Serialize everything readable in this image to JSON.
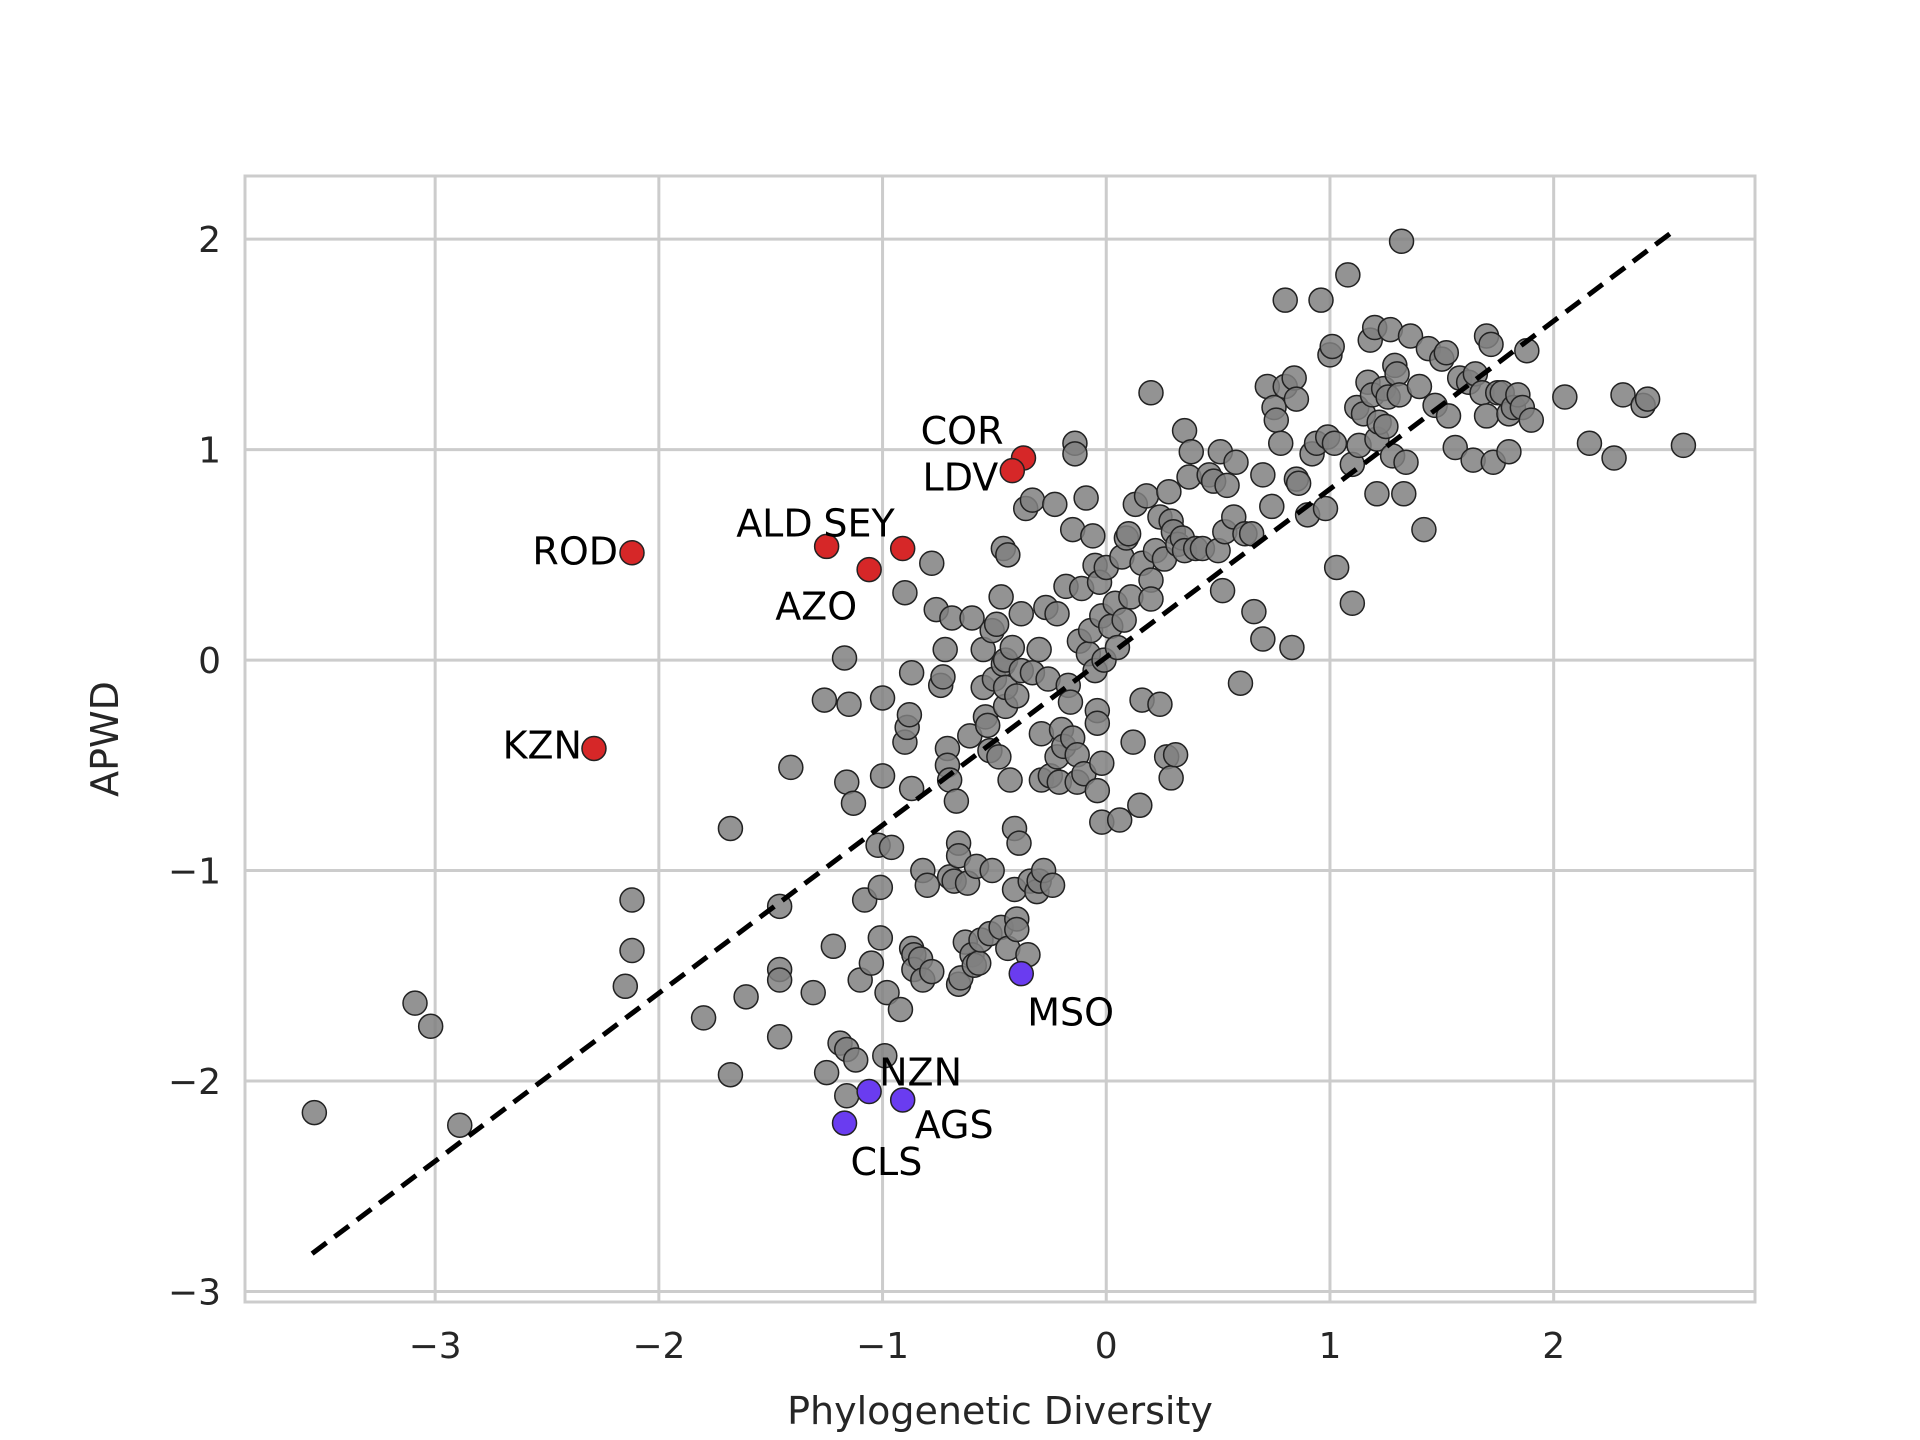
{
  "chart_data": {
    "type": "scatter",
    "xlabel": "Phylogenetic Diversity",
    "ylabel": "APWD",
    "xlim": [
      -3.85,
      2.9
    ],
    "ylim": [
      -3.05,
      2.3
    ],
    "xticks": [
      -3,
      -2,
      -1,
      0,
      1,
      2
    ],
    "yticks": [
      -3,
      -2,
      -1,
      0,
      1,
      2
    ],
    "grid": true,
    "colors": {
      "other": "#808080",
      "high": "#d62728",
      "low": "#6a3cf0",
      "edge": "#222222",
      "grid": "#cccccc",
      "fit_line": "#000000"
    },
    "fit_line": {
      "x": [
        -3.55,
        2.55
      ],
      "y": [
        -2.82,
        2.05
      ]
    },
    "highlight_points": [
      {
        "label": "COR",
        "x": -0.37,
        "y": 0.96,
        "group": "high"
      },
      {
        "label": "LDV",
        "x": -0.42,
        "y": 0.9,
        "group": "high"
      },
      {
        "label": "ALD",
        "x": -1.25,
        "y": 0.54,
        "group": "high"
      },
      {
        "label": "SEY",
        "x": -0.91,
        "y": 0.53,
        "group": "high"
      },
      {
        "label": "AZO",
        "x": -1.06,
        "y": 0.43,
        "group": "high"
      },
      {
        "label": "ROD",
        "x": -2.12,
        "y": 0.51,
        "group": "high"
      },
      {
        "label": "KZN",
        "x": -2.29,
        "y": -0.42,
        "group": "high"
      },
      {
        "label": "MSO",
        "x": -0.38,
        "y": -1.49,
        "group": "low"
      },
      {
        "label": "NZN",
        "x": -1.06,
        "y": -2.05,
        "group": "low"
      },
      {
        "label": "AGS",
        "x": -0.91,
        "y": -2.09,
        "group": "low"
      },
      {
        "label": "CLS",
        "x": -1.17,
        "y": -2.2,
        "group": "low"
      }
    ],
    "points": [
      [
        -3.54,
        -2.15
      ],
      [
        -3.09,
        -1.63
      ],
      [
        -3.02,
        -1.74
      ],
      [
        -2.89,
        -2.21
      ],
      [
        -2.12,
        -1.14
      ],
      [
        -2.12,
        -1.38
      ],
      [
        -2.15,
        -1.55
      ],
      [
        -1.8,
        -1.7
      ],
      [
        -1.68,
        -1.97
      ],
      [
        -1.68,
        -0.8
      ],
      [
        -1.61,
        -1.6
      ],
      [
        -1.46,
        -1.47
      ],
      [
        -1.46,
        -1.52
      ],
      [
        -1.46,
        -1.79
      ],
      [
        -1.46,
        -1.17
      ],
      [
        -1.41,
        -0.51
      ],
      [
        -1.31,
        -1.58
      ],
      [
        -1.22,
        -1.36
      ],
      [
        -1.25,
        -1.96
      ],
      [
        -1.19,
        -1.82
      ],
      [
        -1.16,
        -1.85
      ],
      [
        -1.16,
        -2.07
      ],
      [
        -1.12,
        -1.9
      ],
      [
        -1.26,
        -0.19
      ],
      [
        -1.17,
        0.01
      ],
      [
        -1.15,
        -0.21
      ],
      [
        -1.16,
        -0.58
      ],
      [
        -1.13,
        -0.68
      ],
      [
        -1.1,
        -1.52
      ],
      [
        -1.08,
        -1.14
      ],
      [
        -1.05,
        -1.44
      ],
      [
        -1.02,
        -0.88
      ],
      [
        -1.01,
        -1.08
      ],
      [
        -1.01,
        -1.32
      ],
      [
        -1.0,
        -0.55
      ],
      [
        -1.0,
        -0.18
      ],
      [
        -0.99,
        -1.88
      ],
      [
        -0.98,
        -1.58
      ],
      [
        -0.96,
        -0.89
      ],
      [
        -0.92,
        -1.66
      ],
      [
        -0.9,
        -0.39
      ],
      [
        -0.89,
        -0.32
      ],
      [
        -0.88,
        -0.26
      ],
      [
        -0.9,
        0.32
      ],
      [
        -0.87,
        -1.37
      ],
      [
        -0.86,
        -1.4
      ],
      [
        -0.86,
        -1.47
      ],
      [
        -0.83,
        -1.42
      ],
      [
        -0.82,
        -1.52
      ],
      [
        -0.87,
        -0.06
      ],
      [
        -0.87,
        -0.61
      ],
      [
        -0.82,
        -1.0
      ],
      [
        -0.8,
        -1.07
      ],
      [
        -0.78,
        -1.48
      ],
      [
        -0.78,
        0.46
      ],
      [
        -0.76,
        0.24
      ],
      [
        -0.74,
        -0.12
      ],
      [
        -0.73,
        -0.08
      ],
      [
        -0.72,
        0.05
      ],
      [
        -0.71,
        -0.42
      ],
      [
        -0.71,
        -0.5
      ],
      [
        -0.7,
        -1.03
      ],
      [
        -0.7,
        -0.57
      ],
      [
        -0.69,
        0.2
      ],
      [
        -0.68,
        -1.05
      ],
      [
        -0.67,
        -0.67
      ],
      [
        -0.66,
        -0.87
      ],
      [
        -0.66,
        -0.93
      ],
      [
        -0.66,
        -1.54
      ],
      [
        -0.65,
        -1.51
      ],
      [
        -0.63,
        -1.34
      ],
      [
        -0.62,
        -1.06
      ],
      [
        -0.61,
        -0.36
      ],
      [
        -0.6,
        0.2
      ],
      [
        -0.6,
        -1.4
      ],
      [
        -0.59,
        -1.45
      ],
      [
        -0.58,
        -0.98
      ],
      [
        -0.57,
        -1.44
      ],
      [
        -0.56,
        -1.33
      ],
      [
        -0.55,
        -0.13
      ],
      [
        -0.55,
        0.05
      ],
      [
        -0.54,
        -0.27
      ],
      [
        -0.53,
        -0.31
      ],
      [
        -0.52,
        -0.43
      ],
      [
        -0.52,
        -1.3
      ],
      [
        -0.51,
        0.14
      ],
      [
        -0.51,
        -1.0
      ],
      [
        -0.5,
        -0.09
      ],
      [
        -0.49,
        0.17
      ],
      [
        -0.48,
        -0.46
      ],
      [
        -0.47,
        0.3
      ],
      [
        -0.47,
        -1.27
      ],
      [
        -0.46,
        0.53
      ],
      [
        -0.46,
        -0.02
      ],
      [
        -0.45,
        0.0
      ],
      [
        -0.45,
        -0.22
      ],
      [
        -0.45,
        -0.13
      ],
      [
        -0.44,
        0.5
      ],
      [
        -0.44,
        -1.37
      ],
      [
        -0.43,
        -0.57
      ],
      [
        -0.42,
        0.06
      ],
      [
        -0.41,
        -0.8
      ],
      [
        -0.41,
        -1.09
      ],
      [
        -0.4,
        -1.23
      ],
      [
        -0.4,
        -1.28
      ],
      [
        -0.4,
        -0.17
      ],
      [
        -0.39,
        -0.87
      ],
      [
        -0.38,
        0.22
      ],
      [
        -0.38,
        -0.05
      ],
      [
        -0.36,
        0.72
      ],
      [
        -0.35,
        -1.4
      ],
      [
        -0.34,
        -1.05
      ],
      [
        -0.33,
        0.76
      ],
      [
        -0.33,
        -0.06
      ],
      [
        -0.31,
        -1.1
      ],
      [
        -0.3,
        -1.05
      ],
      [
        -0.3,
        0.05
      ],
      [
        -0.29,
        -0.35
      ],
      [
        -0.29,
        -0.57
      ],
      [
        -0.28,
        -1.0
      ],
      [
        -0.27,
        0.25
      ],
      [
        -0.26,
        -0.09
      ],
      [
        -0.25,
        -0.55
      ],
      [
        -0.24,
        -1.07
      ],
      [
        -0.23,
        0.74
      ],
      [
        -0.22,
        0.22
      ],
      [
        -0.22,
        -0.46
      ],
      [
        -0.21,
        -0.58
      ],
      [
        -0.2,
        -0.33
      ],
      [
        -0.19,
        -0.41
      ],
      [
        -0.18,
        0.35
      ],
      [
        -0.17,
        -0.12
      ],
      [
        -0.16,
        -0.2
      ],
      [
        -0.15,
        -0.37
      ],
      [
        -0.15,
        0.62
      ],
      [
        -0.14,
        1.03
      ],
      [
        -0.14,
        0.98
      ],
      [
        -0.13,
        -0.45
      ],
      [
        -0.13,
        -0.58
      ],
      [
        -0.12,
        0.09
      ],
      [
        -0.11,
        0.34
      ],
      [
        -0.1,
        -0.54
      ],
      [
        -0.09,
        0.77
      ],
      [
        -0.08,
        0.03
      ],
      [
        -0.07,
        0.14
      ],
      [
        -0.06,
        0.59
      ],
      [
        -0.05,
        0.45
      ],
      [
        -0.05,
        -0.05
      ],
      [
        -0.04,
        -0.24
      ],
      [
        -0.04,
        -0.3
      ],
      [
        -0.04,
        -0.62
      ],
      [
        -0.03,
        0.37
      ],
      [
        -0.02,
        -0.49
      ],
      [
        -0.02,
        0.21
      ],
      [
        -0.01,
        0.0
      ],
      [
        -0.02,
        -0.77
      ],
      [
        0.0,
        0.44
      ],
      [
        0.02,
        0.16
      ],
      [
        0.04,
        0.27
      ],
      [
        0.05,
        0.06
      ],
      [
        0.06,
        -0.76
      ],
      [
        0.07,
        0.49
      ],
      [
        0.08,
        0.19
      ],
      [
        0.09,
        0.58
      ],
      [
        0.1,
        0.6
      ],
      [
        0.11,
        0.3
      ],
      [
        0.12,
        -0.39
      ],
      [
        0.13,
        0.74
      ],
      [
        0.15,
        -0.69
      ],
      [
        0.16,
        0.46
      ],
      [
        0.16,
        -0.19
      ],
      [
        0.18,
        0.78
      ],
      [
        0.2,
        0.38
      ],
      [
        0.2,
        0.29
      ],
      [
        0.2,
        1.27
      ],
      [
        0.22,
        0.52
      ],
      [
        0.24,
        -0.21
      ],
      [
        0.24,
        0.68
      ],
      [
        0.26,
        0.48
      ],
      [
        0.27,
        -0.46
      ],
      [
        0.28,
        0.8
      ],
      [
        0.29,
        0.66
      ],
      [
        0.29,
        -0.56
      ],
      [
        0.3,
        0.61
      ],
      [
        0.31,
        -0.45
      ],
      [
        0.32,
        0.55
      ],
      [
        0.34,
        0.58
      ],
      [
        0.35,
        1.09
      ],
      [
        0.35,
        0.52
      ],
      [
        0.37,
        0.87
      ],
      [
        0.38,
        0.99
      ],
      [
        0.4,
        0.53
      ],
      [
        0.43,
        0.53
      ],
      [
        0.46,
        0.88
      ],
      [
        0.48,
        0.85
      ],
      [
        0.5,
        0.52
      ],
      [
        0.51,
        0.99
      ],
      [
        0.52,
        0.33
      ],
      [
        0.53,
        0.61
      ],
      [
        0.54,
        0.83
      ],
      [
        0.57,
        0.68
      ],
      [
        0.58,
        0.94
      ],
      [
        0.6,
        -0.11
      ],
      [
        0.62,
        0.6
      ],
      [
        0.65,
        0.6
      ],
      [
        0.66,
        0.23
      ],
      [
        0.7,
        0.1
      ],
      [
        0.7,
        0.88
      ],
      [
        0.72,
        1.3
      ],
      [
        0.74,
        0.73
      ],
      [
        0.75,
        1.2
      ],
      [
        0.76,
        1.14
      ],
      [
        0.78,
        1.03
      ],
      [
        0.8,
        1.3
      ],
      [
        0.8,
        1.71
      ],
      [
        0.83,
        0.06
      ],
      [
        0.84,
        1.34
      ],
      [
        0.85,
        0.86
      ],
      [
        0.85,
        1.24
      ],
      [
        0.86,
        0.84
      ],
      [
        0.9,
        0.69
      ],
      [
        0.92,
        0.98
      ],
      [
        0.94,
        1.03
      ],
      [
        0.96,
        1.71
      ],
      [
        0.98,
        0.72
      ],
      [
        0.99,
        1.06
      ],
      [
        1.0,
        1.45
      ],
      [
        1.01,
        1.49
      ],
      [
        1.02,
        1.03
      ],
      [
        1.03,
        0.44
      ],
      [
        1.08,
        1.83
      ],
      [
        1.1,
        0.27
      ],
      [
        1.1,
        0.93
      ],
      [
        1.12,
        1.2
      ],
      [
        1.13,
        1.02
      ],
      [
        1.15,
        1.17
      ],
      [
        1.17,
        1.32
      ],
      [
        1.18,
        1.52
      ],
      [
        1.19,
        1.26
      ],
      [
        1.2,
        1.58
      ],
      [
        1.21,
        0.79
      ],
      [
        1.21,
        1.05
      ],
      [
        1.22,
        1.13
      ],
      [
        1.24,
        1.29
      ],
      [
        1.25,
        1.11
      ],
      [
        1.26,
        1.25
      ],
      [
        1.27,
        1.57
      ],
      [
        1.28,
        0.97
      ],
      [
        1.29,
        1.4
      ],
      [
        1.3,
        1.36
      ],
      [
        1.31,
        1.26
      ],
      [
        1.32,
        1.99
      ],
      [
        1.33,
        0.79
      ],
      [
        1.34,
        0.94
      ],
      [
        1.36,
        1.54
      ],
      [
        1.4,
        1.3
      ],
      [
        1.42,
        0.62
      ],
      [
        1.44,
        1.48
      ],
      [
        1.47,
        1.21
      ],
      [
        1.5,
        1.43
      ],
      [
        1.52,
        1.46
      ],
      [
        1.53,
        1.16
      ],
      [
        1.56,
        1.01
      ],
      [
        1.58,
        1.34
      ],
      [
        1.62,
        1.32
      ],
      [
        1.64,
        0.95
      ],
      [
        1.65,
        1.36
      ],
      [
        1.68,
        1.27
      ],
      [
        1.7,
        1.54
      ],
      [
        1.7,
        1.16
      ],
      [
        1.72,
        1.5
      ],
      [
        1.73,
        0.94
      ],
      [
        1.75,
        1.27
      ],
      [
        1.77,
        1.27
      ],
      [
        1.8,
        1.17
      ],
      [
        1.8,
        0.99
      ],
      [
        1.82,
        1.2
      ],
      [
        1.84,
        1.26
      ],
      [
        1.86,
        1.2
      ],
      [
        1.88,
        1.47
      ],
      [
        1.9,
        1.14
      ],
      [
        2.05,
        1.25
      ],
      [
        2.16,
        1.03
      ],
      [
        2.27,
        0.96
      ],
      [
        2.31,
        1.26
      ],
      [
        2.4,
        1.21
      ],
      [
        2.42,
        1.24
      ],
      [
        2.58,
        1.02
      ]
    ]
  }
}
